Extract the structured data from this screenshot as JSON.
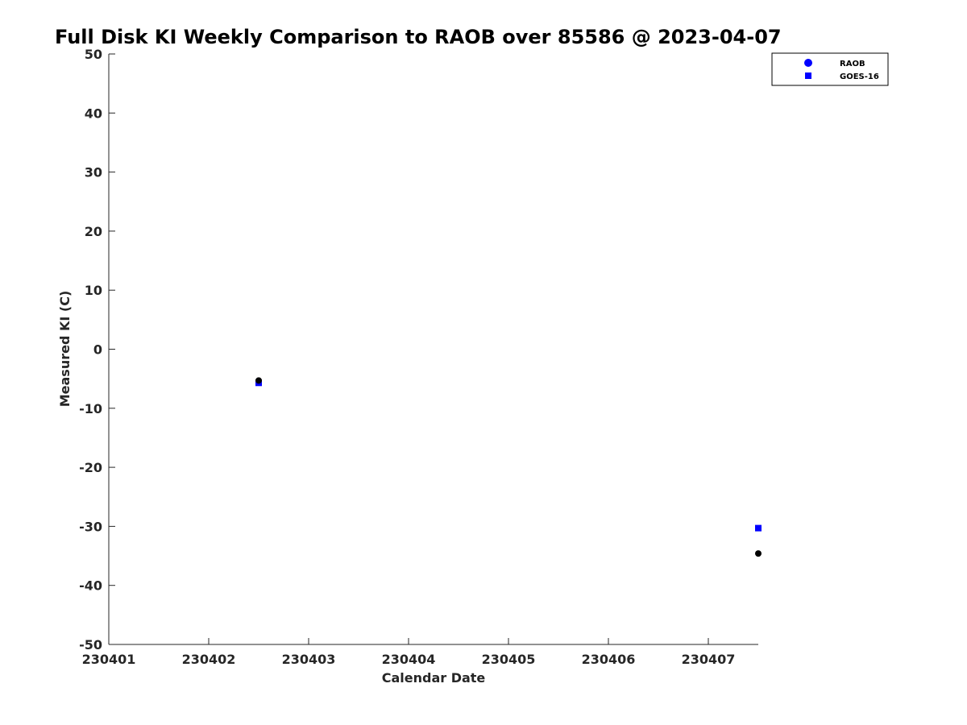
{
  "chart_data": {
    "type": "scatter",
    "title": "Full Disk KI Weekly Comparison to RAOB over 85586 @ 2023-04-07",
    "xlabel": "Calendar Date",
    "ylabel": "Measured KI (C)",
    "x_ticks": [
      "230401",
      "230402",
      "230403",
      "230404",
      "230405",
      "230406",
      "230407"
    ],
    "y_ticks": [
      "50",
      "40",
      "30",
      "20",
      "10",
      "0",
      "-10",
      "-20",
      "-30",
      "-40",
      "-50"
    ],
    "ylim": [
      -50,
      50
    ],
    "grid": false,
    "legend_position": "top-right",
    "legend": [
      {
        "label": "RAOB",
        "marker": "circle",
        "color": "#0000ff"
      },
      {
        "label": "GOES-16",
        "marker": "square",
        "color": "#0000ff"
      }
    ],
    "series": [
      {
        "name": "RAOB",
        "marker": "circle",
        "color": "#000000",
        "points": [
          {
            "x": "2023-04-02 12:00",
            "y": -5.3
          },
          {
            "x": "2023-04-07 12:00",
            "y": -34.6
          }
        ]
      },
      {
        "name": "GOES-16",
        "marker": "square",
        "color": "#0000ff",
        "points": [
          {
            "x": "2023-04-02 12:00",
            "y": -5.7
          },
          {
            "x": "2023-04-07 12:00",
            "y": -30.3
          }
        ]
      }
    ]
  }
}
